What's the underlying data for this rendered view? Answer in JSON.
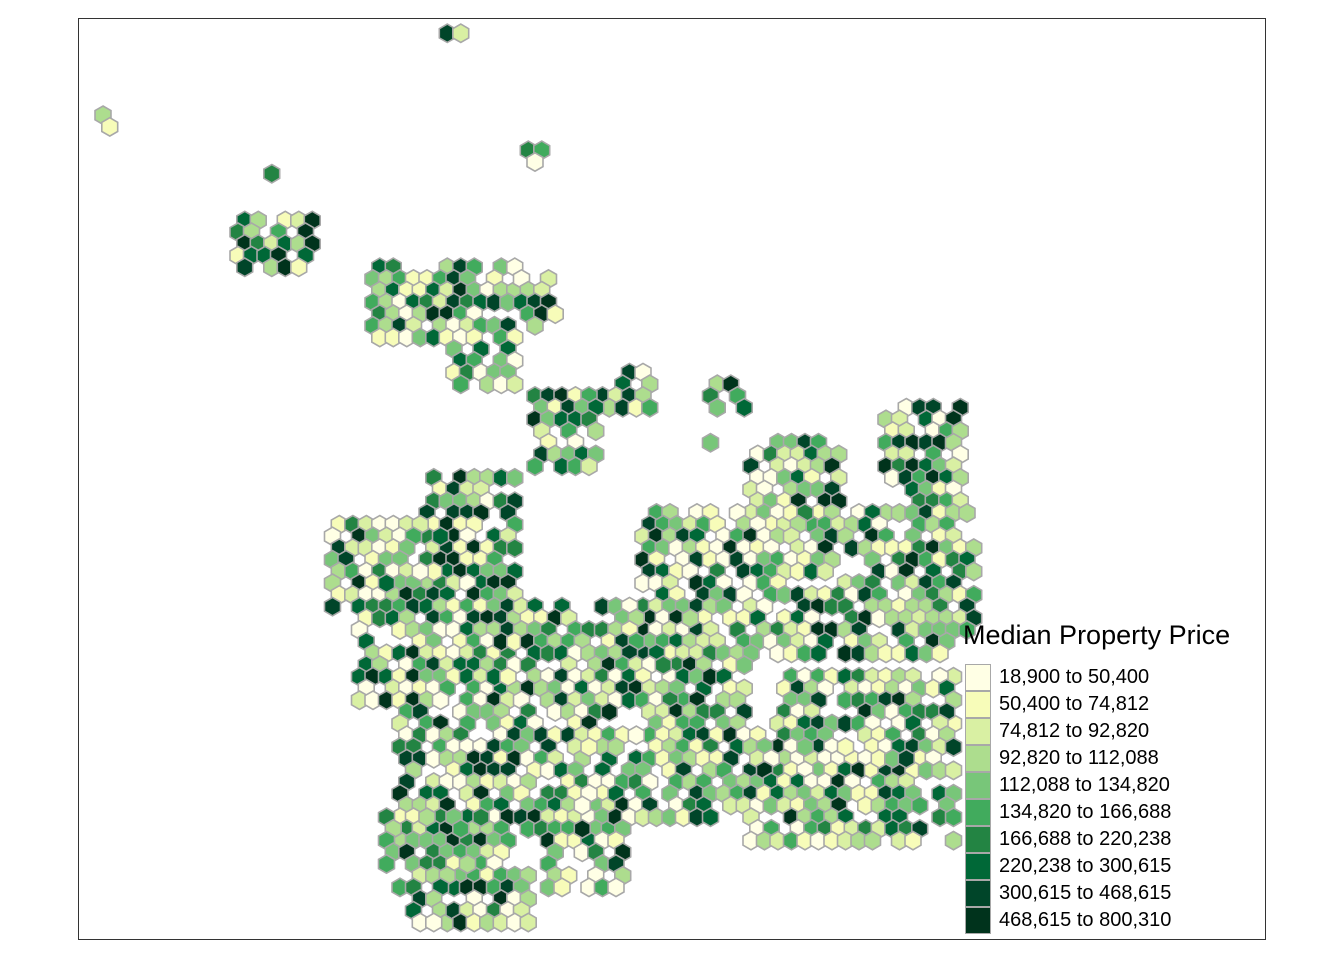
{
  "legend": {
    "title": "Median Property Price",
    "classes": [
      {
        "label": "18,900 to 50,400",
        "color": "#ffffe5"
      },
      {
        "label": "50,400 to 74,812",
        "color": "#f7fcb9"
      },
      {
        "label": "74,812 to 92,820",
        "color": "#d9f0a3"
      },
      {
        "label": "92,820 to 112,088",
        "color": "#addd8e"
      },
      {
        "label": "112,088 to 134,820",
        "color": "#78c679"
      },
      {
        "label": "134,820 to 166,688",
        "color": "#41ab5d"
      },
      {
        "label": "166,688 to 220,238",
        "color": "#238443"
      },
      {
        "label": "220,238 to 300,615",
        "color": "#006837"
      },
      {
        "label": "300,615 to 468,615",
        "color": "#004529"
      },
      {
        "label": "468,615 to 800,310",
        "color": "#00331c"
      }
    ]
  },
  "hex_outline_color": "#a8a8a8",
  "frame_color": "#333333"
}
